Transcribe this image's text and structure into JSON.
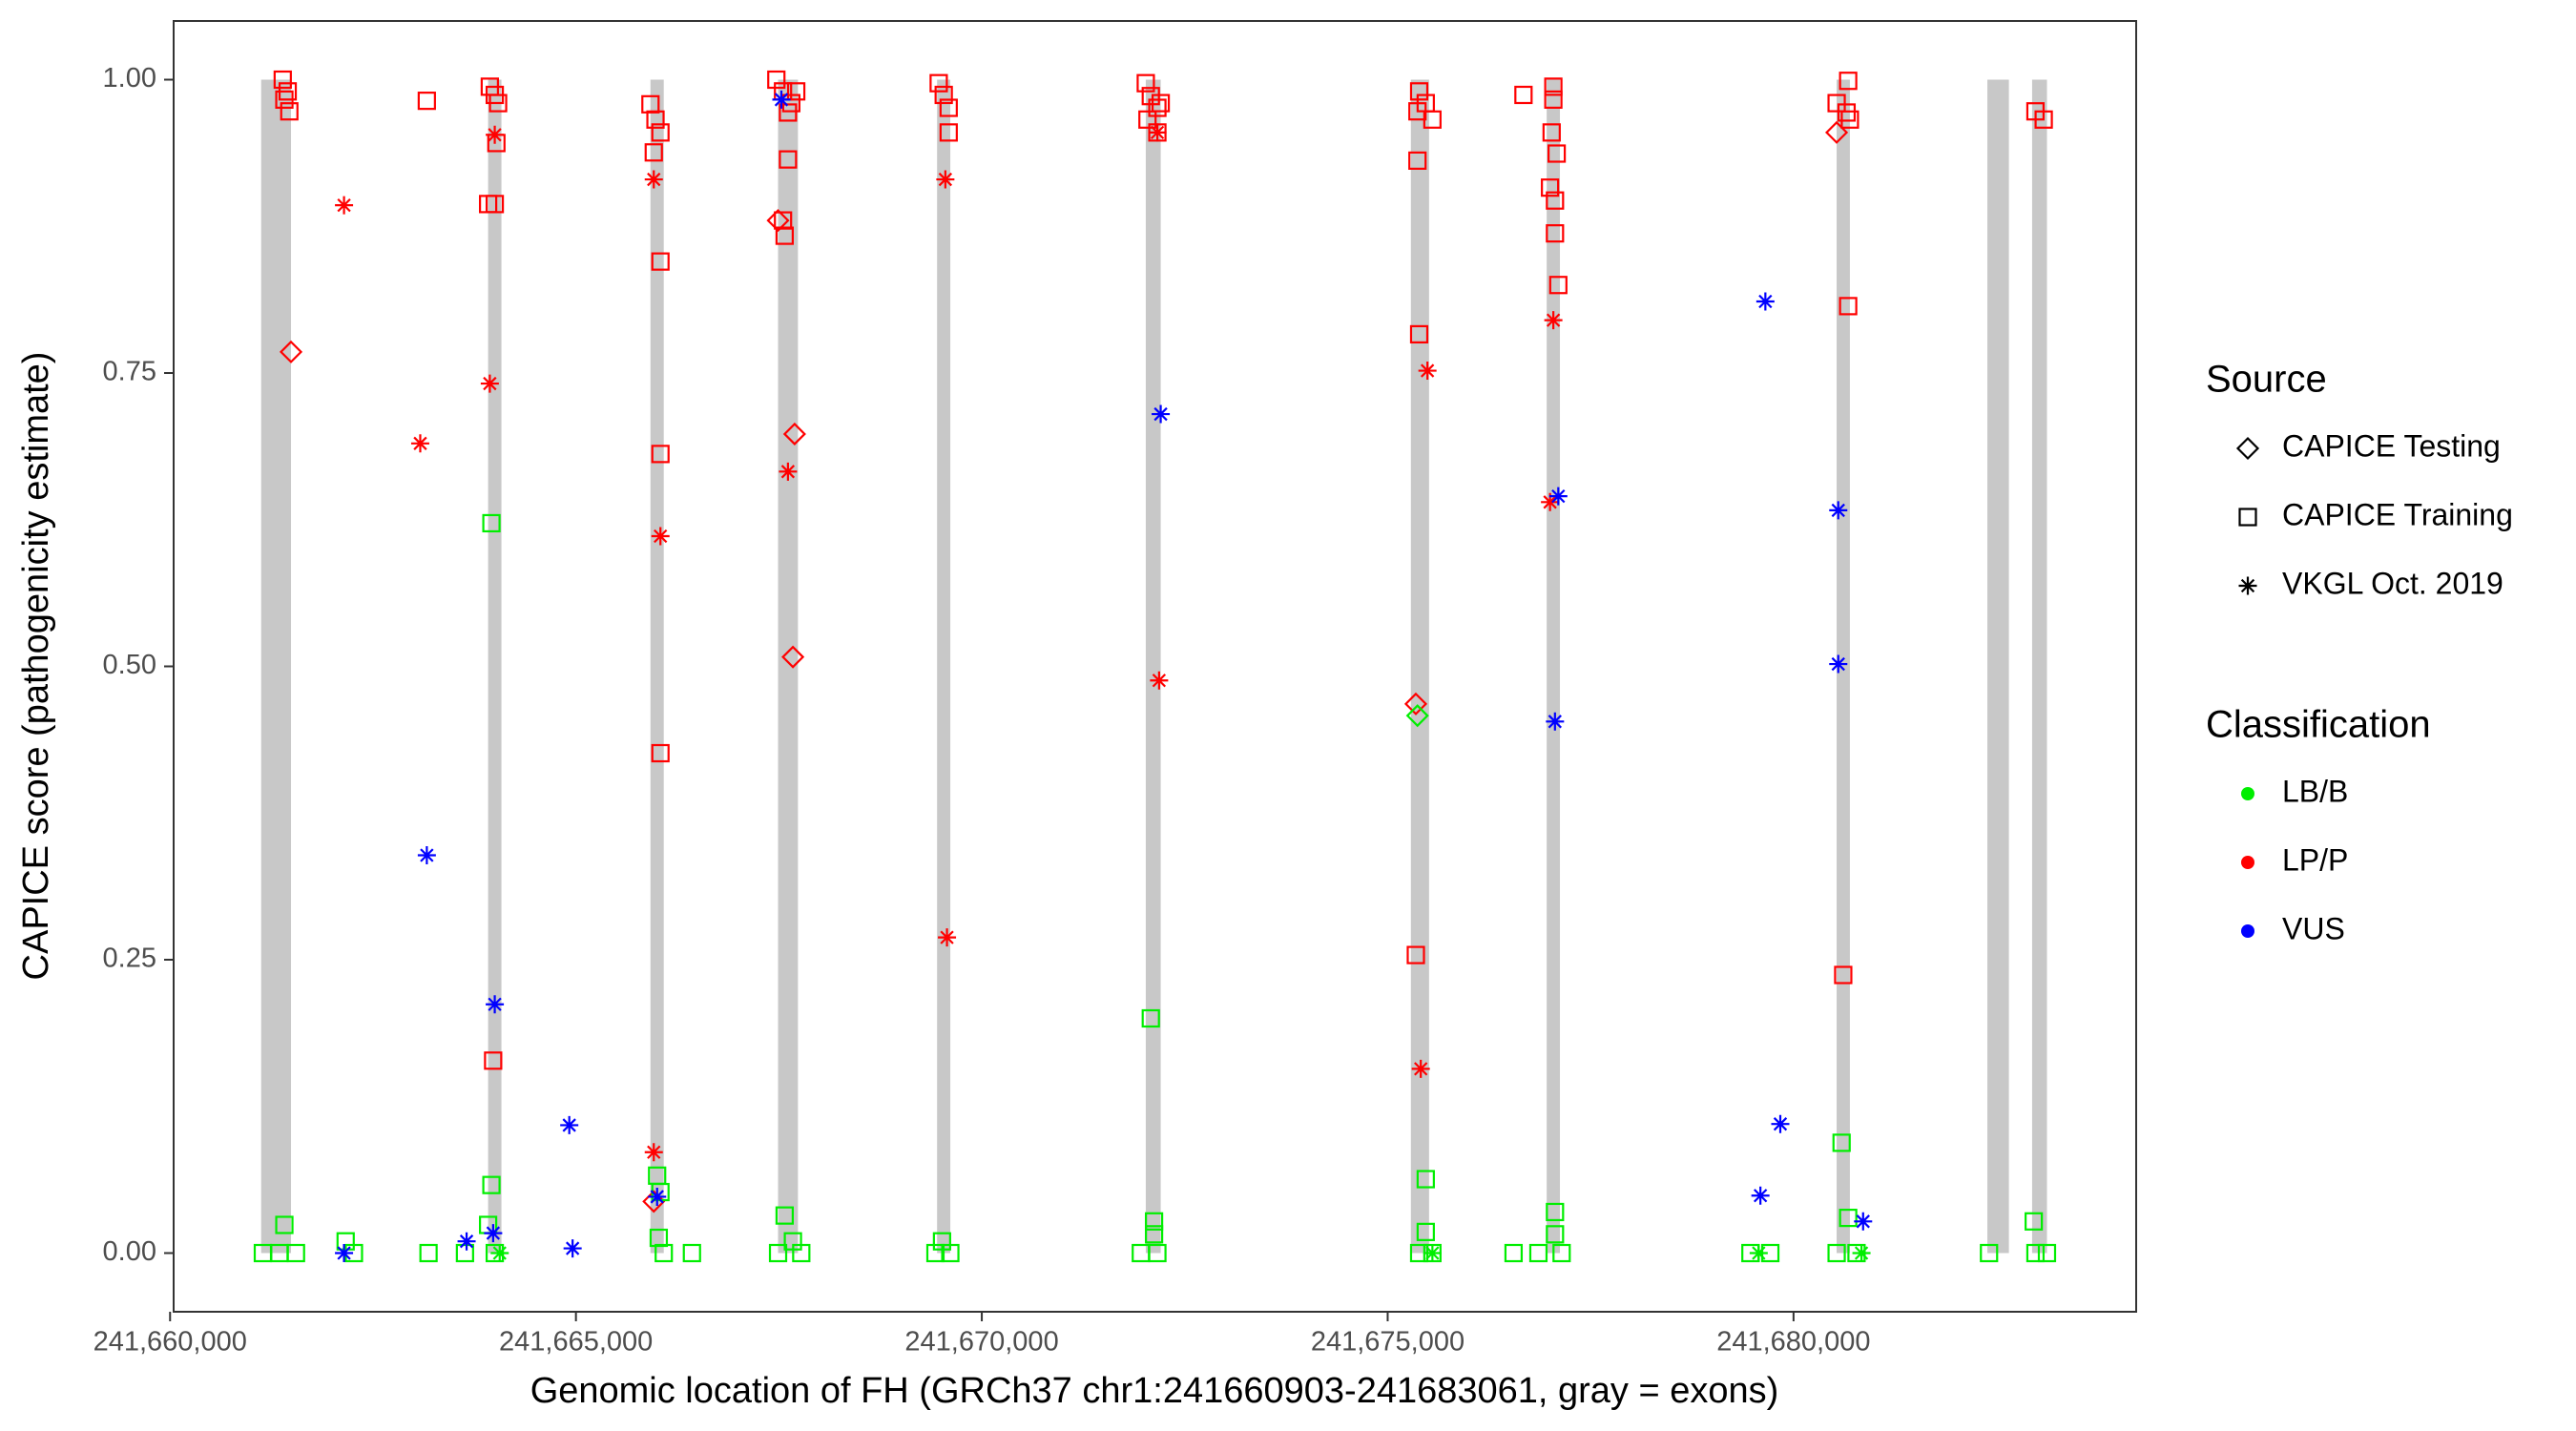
{
  "chart_data": {
    "type": "scatter",
    "x_label": "Genomic location of FH (GRCh37 chr1:241660903-241683061, gray = exons)",
    "y_label": "CAPICE score (pathogenicity estimate)",
    "xlim": [
      241660044,
      241684221
    ],
    "ylim": [
      -0.05,
      1.05
    ],
    "xticks": [
      {
        "value": 241660000,
        "label": "241,660,000"
      },
      {
        "value": 241665000,
        "label": "241,665,000"
      },
      {
        "value": 241670000,
        "label": "241,670,000"
      },
      {
        "value": 241675000,
        "label": "241,675,000"
      },
      {
        "value": 241680000,
        "label": "241,680,000"
      }
    ],
    "yticks": [
      {
        "value": 0,
        "label": "0.00"
      },
      {
        "value": 0.25,
        "label": "0.25"
      },
      {
        "value": 0.5,
        "label": "0.50"
      },
      {
        "value": 0.75,
        "label": "0.75"
      },
      {
        "value": 1,
        "label": "1.00"
      }
    ],
    "exon_color": "#c8c8c8",
    "exons": [
      [
        241661122,
        241661490
      ],
      [
        241663918,
        241664082
      ],
      [
        241665918,
        241666082
      ],
      [
        241667490,
        241667735
      ],
      [
        241669449,
        241669612
      ],
      [
        241672020,
        241672204
      ],
      [
        241675286,
        241675510
      ],
      [
        241676959,
        241677122
      ],
      [
        241680531,
        241680694
      ],
      [
        241682388,
        241682653
      ],
      [
        241682939,
        241683122
      ]
    ],
    "legend_source": {
      "title": "Source",
      "entries": [
        {
          "name": "CAPICE Testing",
          "shape": "diamond"
        },
        {
          "name": "CAPICE Training",
          "shape": "square"
        },
        {
          "name": "VKGL Oct. 2019",
          "shape": "asterisk"
        }
      ]
    },
    "legend_classification": {
      "title": "Classification",
      "entries": [
        {
          "name": "LB/B",
          "color": "#00ee00"
        },
        {
          "name": "LP/P",
          "color": "#ff0000"
        },
        {
          "name": "VUS",
          "color": "#0000ff"
        }
      ]
    },
    "series": [
      {
        "shape": "diamond",
        "color": "#ff0000",
        "x": [
          241661490,
          241667490,
          241667694,
          241667673,
          241665959,
          241675347,
          241680531
        ],
        "values": [
          0.768,
          0.88,
          0.698,
          0.508,
          0.044,
          0.468,
          0.955
        ]
      },
      {
        "shape": "diamond",
        "color": "#00ee00",
        "x": [
          241675367
        ],
        "values": [
          0.458
        ]
      },
      {
        "shape": "square",
        "color": "#ff0000",
        "x": [
          241661388,
          241661449,
          241661408,
          241661469,
          241663163,
          241663939,
          241664000,
          241664041,
          241664020,
          241663918,
          241664000,
          241663980,
          241665918,
          241665980,
          241666041,
          241665959,
          241666041,
          241666041,
          241666041,
          241667469,
          241667551,
          241667653,
          241667714,
          241667612,
          241667612,
          241667551,
          241667571,
          241669469,
          241669531,
          241669592,
          241669592,
          241672020,
          241672082,
          241672163,
          241672041,
          241672163,
          241672204,
          241675388,
          241675469,
          241675367,
          241675551,
          241675367,
          241675388,
          241675347,
          241676673,
          241677041,
          241677041,
          241677020,
          241677082,
          241677000,
          241677061,
          241677061,
          241677102,
          241680673,
          241680531,
          241680653,
          241680694,
          241680673,
          241680612,
          241682980,
          241683082
        ],
        "values": [
          1.0,
          0.99,
          0.983,
          0.973,
          0.982,
          0.994,
          0.987,
          0.98,
          0.946,
          0.894,
          0.894,
          0.164,
          0.979,
          0.966,
          0.955,
          0.938,
          0.845,
          0.681,
          0.426,
          1.0,
          0.99,
          0.98,
          0.99,
          0.972,
          0.932,
          0.88,
          0.867,
          0.997,
          0.987,
          0.976,
          0.955,
          0.997,
          0.986,
          0.976,
          0.966,
          0.955,
          0.98,
          0.99,
          0.98,
          0.973,
          0.966,
          0.931,
          0.783,
          0.254,
          0.987,
          0.994,
          0.983,
          0.955,
          0.937,
          0.908,
          0.897,
          0.869,
          0.825,
          0.999,
          0.98,
          0.972,
          0.966,
          0.807,
          0.237,
          0.973,
          0.966
        ]
      },
      {
        "shape": "square",
        "color": "#00ee00",
        "x": [
          241661143,
          241661347,
          241661551,
          241661408,
          241662163,
          241662265,
          241663184,
          241663633,
          241663959,
          241663918,
          241664000,
          241663959,
          241666000,
          241666041,
          241666020,
          241666082,
          241666429,
          241667571,
          241667490,
          241667673,
          241667776,
          241669510,
          241669612,
          241669429,
          241672082,
          241672122,
          241672122,
          241672163,
          241671959,
          241675469,
          241675469,
          241675388,
          241675551,
          241676551,
          241676857,
          241677061,
          241677061,
          241677143,
          241680592,
          241680673,
          241680531,
          241680776,
          241682408,
          241682959,
          241682980,
          241683122,
          241679714,
          241679469
        ],
        "values": [
          0,
          0,
          0,
          0.024,
          0.01,
          0,
          0,
          0,
          0.058,
          0.024,
          0,
          0.622,
          0.066,
          0.052,
          0.013,
          0,
          0,
          0.032,
          0,
          0.01,
          0,
          0.01,
          0,
          0,
          0.2,
          0.027,
          0.016,
          0,
          0,
          0.063,
          0.018,
          0,
          0,
          0,
          0,
          0.035,
          0.016,
          0,
          0.094,
          0.03,
          0,
          0,
          0,
          0.027,
          0,
          0,
          0,
          0
        ]
      },
      {
        "shape": "asterisk",
        "color": "#ff0000",
        "x": [
          241662143,
          241663082,
          241663939,
          241664000,
          241665959,
          241666041,
          241665959,
          241667612,
          241669551,
          241669571,
          241672184,
          241672163,
          241675490,
          241675408,
          241677041,
          241677000
        ],
        "values": [
          0.893,
          0.69,
          0.741,
          0.953,
          0.915,
          0.611,
          0.086,
          0.666,
          0.915,
          0.269,
          0.488,
          0.955,
          0.752,
          0.157,
          0.795,
          0.64
        ]
      },
      {
        "shape": "asterisk",
        "color": "#0000ff",
        "x": [
          241663163,
          241664000,
          241663980,
          241663653,
          241662143,
          241664918,
          241664959,
          241666000,
          241667531,
          241672204,
          241677102,
          241677061,
          241679653,
          241679837,
          241679592,
          241680551,
          241680551,
          241680857
        ],
        "values": [
          0.339,
          0.212,
          0.017,
          0.01,
          0,
          0.109,
          0.004,
          0.048,
          0.983,
          0.715,
          0.645,
          0.453,
          0.811,
          0.11,
          0.049,
          0.633,
          0.502,
          0.027
        ]
      },
      {
        "shape": "asterisk",
        "color": "#00ee00",
        "x": [
          241679571,
          241675551,
          241680837,
          241664061
        ],
        "values": [
          0,
          0,
          0,
          0
        ]
      }
    ]
  }
}
